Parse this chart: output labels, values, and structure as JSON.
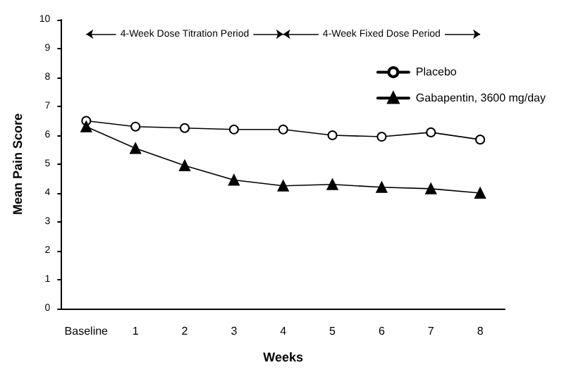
{
  "chart_data": {
    "type": "line",
    "xlabel": "Weeks",
    "ylabel": "Mean Pain Score",
    "categories": [
      "Baseline",
      "1",
      "2",
      "3",
      "4",
      "5",
      "6",
      "7",
      "8"
    ],
    "series": [
      {
        "name": "Placebo",
        "color": "#000000",
        "marker": "circle",
        "values": [
          6.5,
          6.3,
          6.25,
          6.2,
          6.2,
          6.0,
          5.95,
          6.1,
          5.85
        ]
      },
      {
        "name": "Gabapentin, 3600 mg/day",
        "color": "#000000",
        "marker": "triangle",
        "values": [
          6.3,
          5.55,
          4.95,
          4.45,
          4.25,
          4.3,
          4.2,
          4.15,
          4.0
        ]
      }
    ],
    "annotations": [
      "4-Week Dose Titration Period",
      "4-Week Fixed Dose Period"
    ],
    "ylim": [
      0,
      10
    ],
    "yticks": [
      0,
      1,
      2,
      3,
      4,
      5,
      6,
      7,
      8,
      9,
      10
    ],
    "grid": false,
    "legend": "top right",
    "line_style": "solid"
  }
}
